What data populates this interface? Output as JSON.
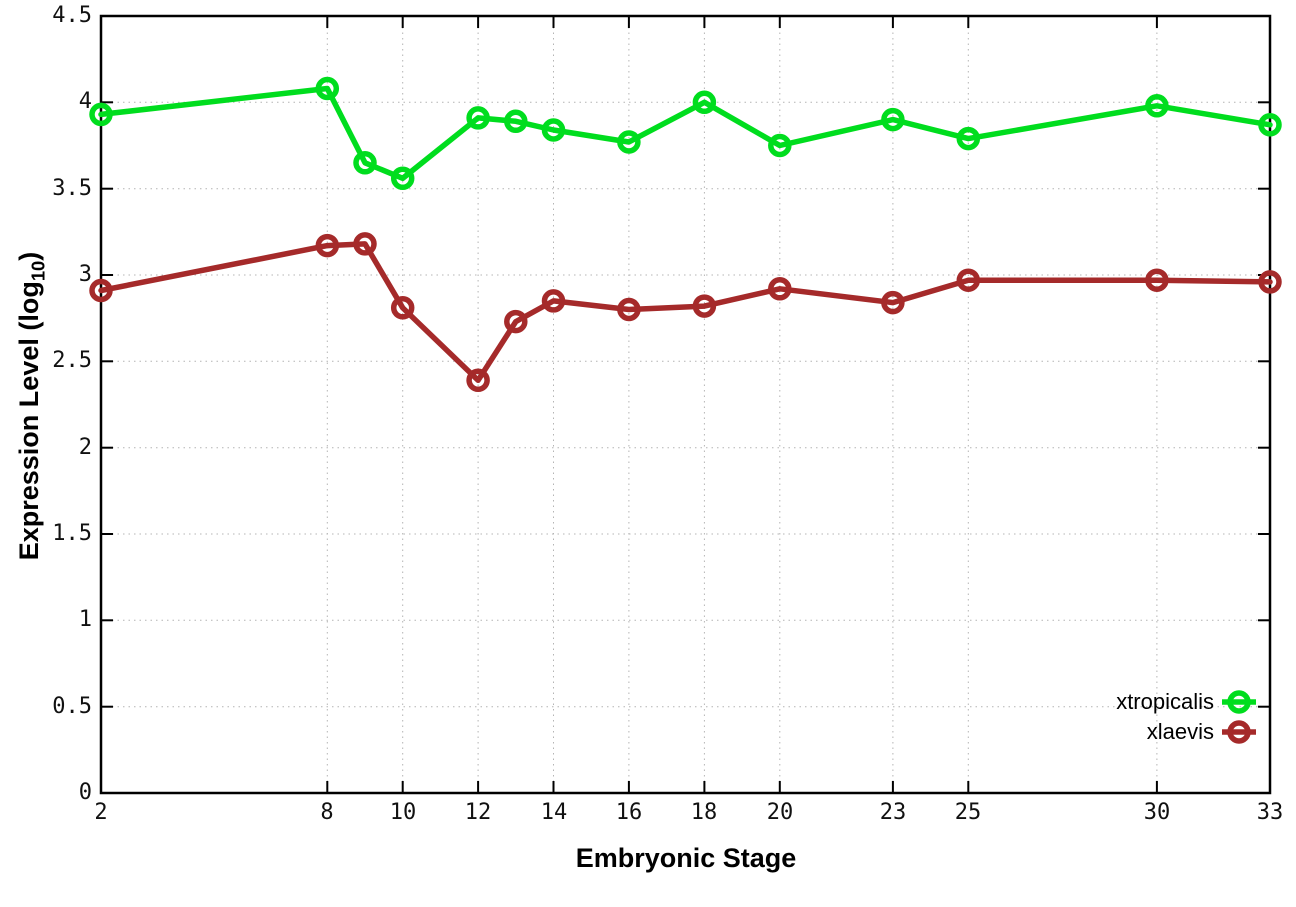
{
  "figure": {
    "background": "#ffffff",
    "border_color": "#000000",
    "grid_color": "#b4b4b4",
    "ylabel_parts": {
      "prefix": "Expression Level (log",
      "sub": "10",
      "suffix": ")"
    }
  },
  "chart_data": {
    "type": "line",
    "title": "",
    "xlabel": "Embryonic Stage",
    "ylabel": "Expression Level (log10)",
    "x": [
      2,
      8,
      9,
      10,
      12,
      13,
      14,
      16,
      18,
      20,
      23,
      25,
      30,
      33
    ],
    "series": [
      {
        "name": "xtropicalis",
        "color": "#00dd1e",
        "marker": "open-circle",
        "values": [
          3.93,
          4.08,
          3.65,
          3.56,
          3.91,
          3.89,
          3.84,
          3.77,
          4.0,
          3.75,
          3.9,
          3.79,
          3.98,
          3.87
        ]
      },
      {
        "name": "xlaevis",
        "color": "#a52a2a",
        "marker": "open-circle",
        "values": [
          2.91,
          3.17,
          3.18,
          2.81,
          2.39,
          2.73,
          2.85,
          2.8,
          2.82,
          2.92,
          2.84,
          2.97,
          2.97,
          2.96
        ]
      }
    ],
    "x_ticks": [
      2,
      8,
      10,
      12,
      14,
      16,
      18,
      20,
      23,
      25,
      30,
      33
    ],
    "x_tick_labels": [
      "2",
      "8",
      "10",
      "12",
      "14",
      "16",
      "18",
      "20",
      "23",
      "25",
      "30",
      "33"
    ],
    "y_ticks": [
      0,
      0.5,
      1,
      1.5,
      2,
      2.5,
      3,
      3.5,
      4,
      4.5
    ],
    "y_tick_labels": [
      "0",
      "0.5",
      "1",
      "1.5",
      "2",
      "2.5",
      "3",
      "3.5",
      "4",
      "4.5"
    ],
    "xlim": [
      2,
      33
    ],
    "ylim": [
      0,
      4.5
    ],
    "grid": true,
    "grid_style": "dotted",
    "legend_position": "bottom-right"
  }
}
